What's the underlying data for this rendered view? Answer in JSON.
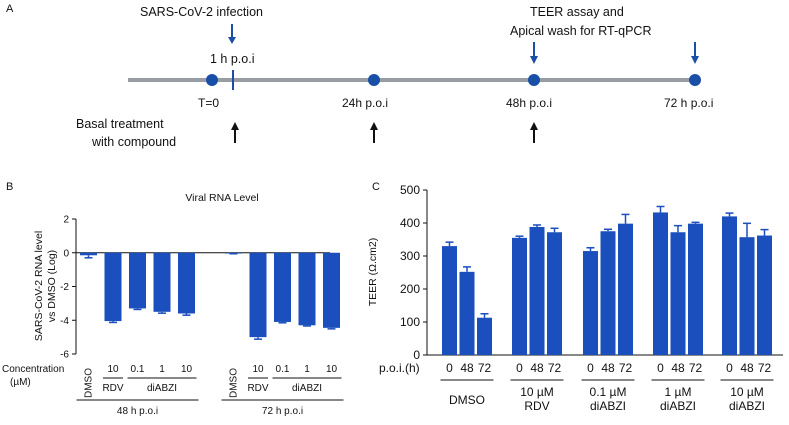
{
  "panels": {
    "a": "A",
    "b": "B",
    "c": "C"
  },
  "timeline": {
    "infection_label": "SARS-CoV-2 infection",
    "infection_time": "1 h p.o.i",
    "teer_label_line1": "TEER assay and",
    "teer_label_line2": "Apical wash for RT-qPCR",
    "basal_line1": "Basal treatment",
    "basal_line2": "with compound",
    "points": [
      "T=0",
      "24h p.o.i",
      "48h p.o.i",
      "72 h p.o.i"
    ],
    "colors": {
      "line": "#9a9ca3",
      "dot": "#1a4fa8",
      "arrow_blue": "#1a4fa8",
      "arrow_black": "#111111"
    }
  },
  "chart_data": [
    {
      "type": "bar",
      "title": "Viral RNA Level",
      "ylabel_line1": "SARS-CoV-2 RNA level",
      "ylabel_line2": "vs DMSO (Log)",
      "ylim": [
        -6,
        2
      ],
      "yticks": [
        2,
        0,
        -2,
        -4,
        -6
      ],
      "x_axis_title": "Concentration",
      "x_axis_unit": "(µM)",
      "groups": [
        {
          "label": "48 h p.o.i",
          "categories": [
            "DMSO",
            "10",
            "0.1",
            "1",
            "10"
          ],
          "treatments": [
            "",
            "RDV",
            "diABZI",
            "diABZI",
            "diABZI"
          ],
          "values": [
            -0.15,
            -4.05,
            -3.3,
            -3.5,
            -3.6
          ],
          "errors": [
            0.15,
            0.08,
            0.06,
            0.08,
            0.1
          ]
        },
        {
          "label": "72 h p.o.i",
          "categories": [
            "DMSO",
            "10",
            "0.1",
            "1",
            "10"
          ],
          "treatments": [
            "",
            "RDV",
            "diABZI",
            "diABZI",
            "diABZI"
          ],
          "values": [
            -0.02,
            -5.0,
            -4.1,
            -4.3,
            -4.45
          ],
          "errors": [
            0.04,
            0.12,
            0.05,
            0.04,
            0.06
          ]
        }
      ],
      "treatment_labels": {
        "rdv": "RDV",
        "diabzi": "diABZI"
      },
      "colors": {
        "bar": "#1a4fbd"
      }
    },
    {
      "type": "bar",
      "title": "",
      "ylabel": "TEER (Ω.cm2)",
      "ylim": [
        0,
        500
      ],
      "yticks": [
        0,
        100,
        200,
        300,
        400,
        500
      ],
      "x_axis_title": "p.o.i.(h)",
      "timepoints": [
        "0",
        "48",
        "72"
      ],
      "groups": [
        {
          "label_line1": "DMSO",
          "label_line2": "",
          "values": [
            330,
            252,
            113
          ],
          "errors": [
            12,
            15,
            12
          ]
        },
        {
          "label_line1": "10 µM",
          "label_line2": "RDV",
          "values": [
            355,
            388,
            372
          ],
          "errors": [
            5,
            6,
            12
          ]
        },
        {
          "label_line1": "0.1 µM",
          "label_line2": "diABZI",
          "values": [
            315,
            375,
            398
          ],
          "errors": [
            10,
            6,
            28
          ]
        },
        {
          "label_line1": "1 µM",
          "label_line2": "diABZI",
          "values": [
            432,
            372,
            398
          ],
          "errors": [
            18,
            20,
            4
          ]
        },
        {
          "label_line1": "10 µM",
          "label_line2": "diABZI",
          "values": [
            420,
            357,
            362
          ],
          "errors": [
            10,
            42,
            18
          ]
        }
      ],
      "colors": {
        "bar": "#1a4fbd"
      }
    }
  ]
}
